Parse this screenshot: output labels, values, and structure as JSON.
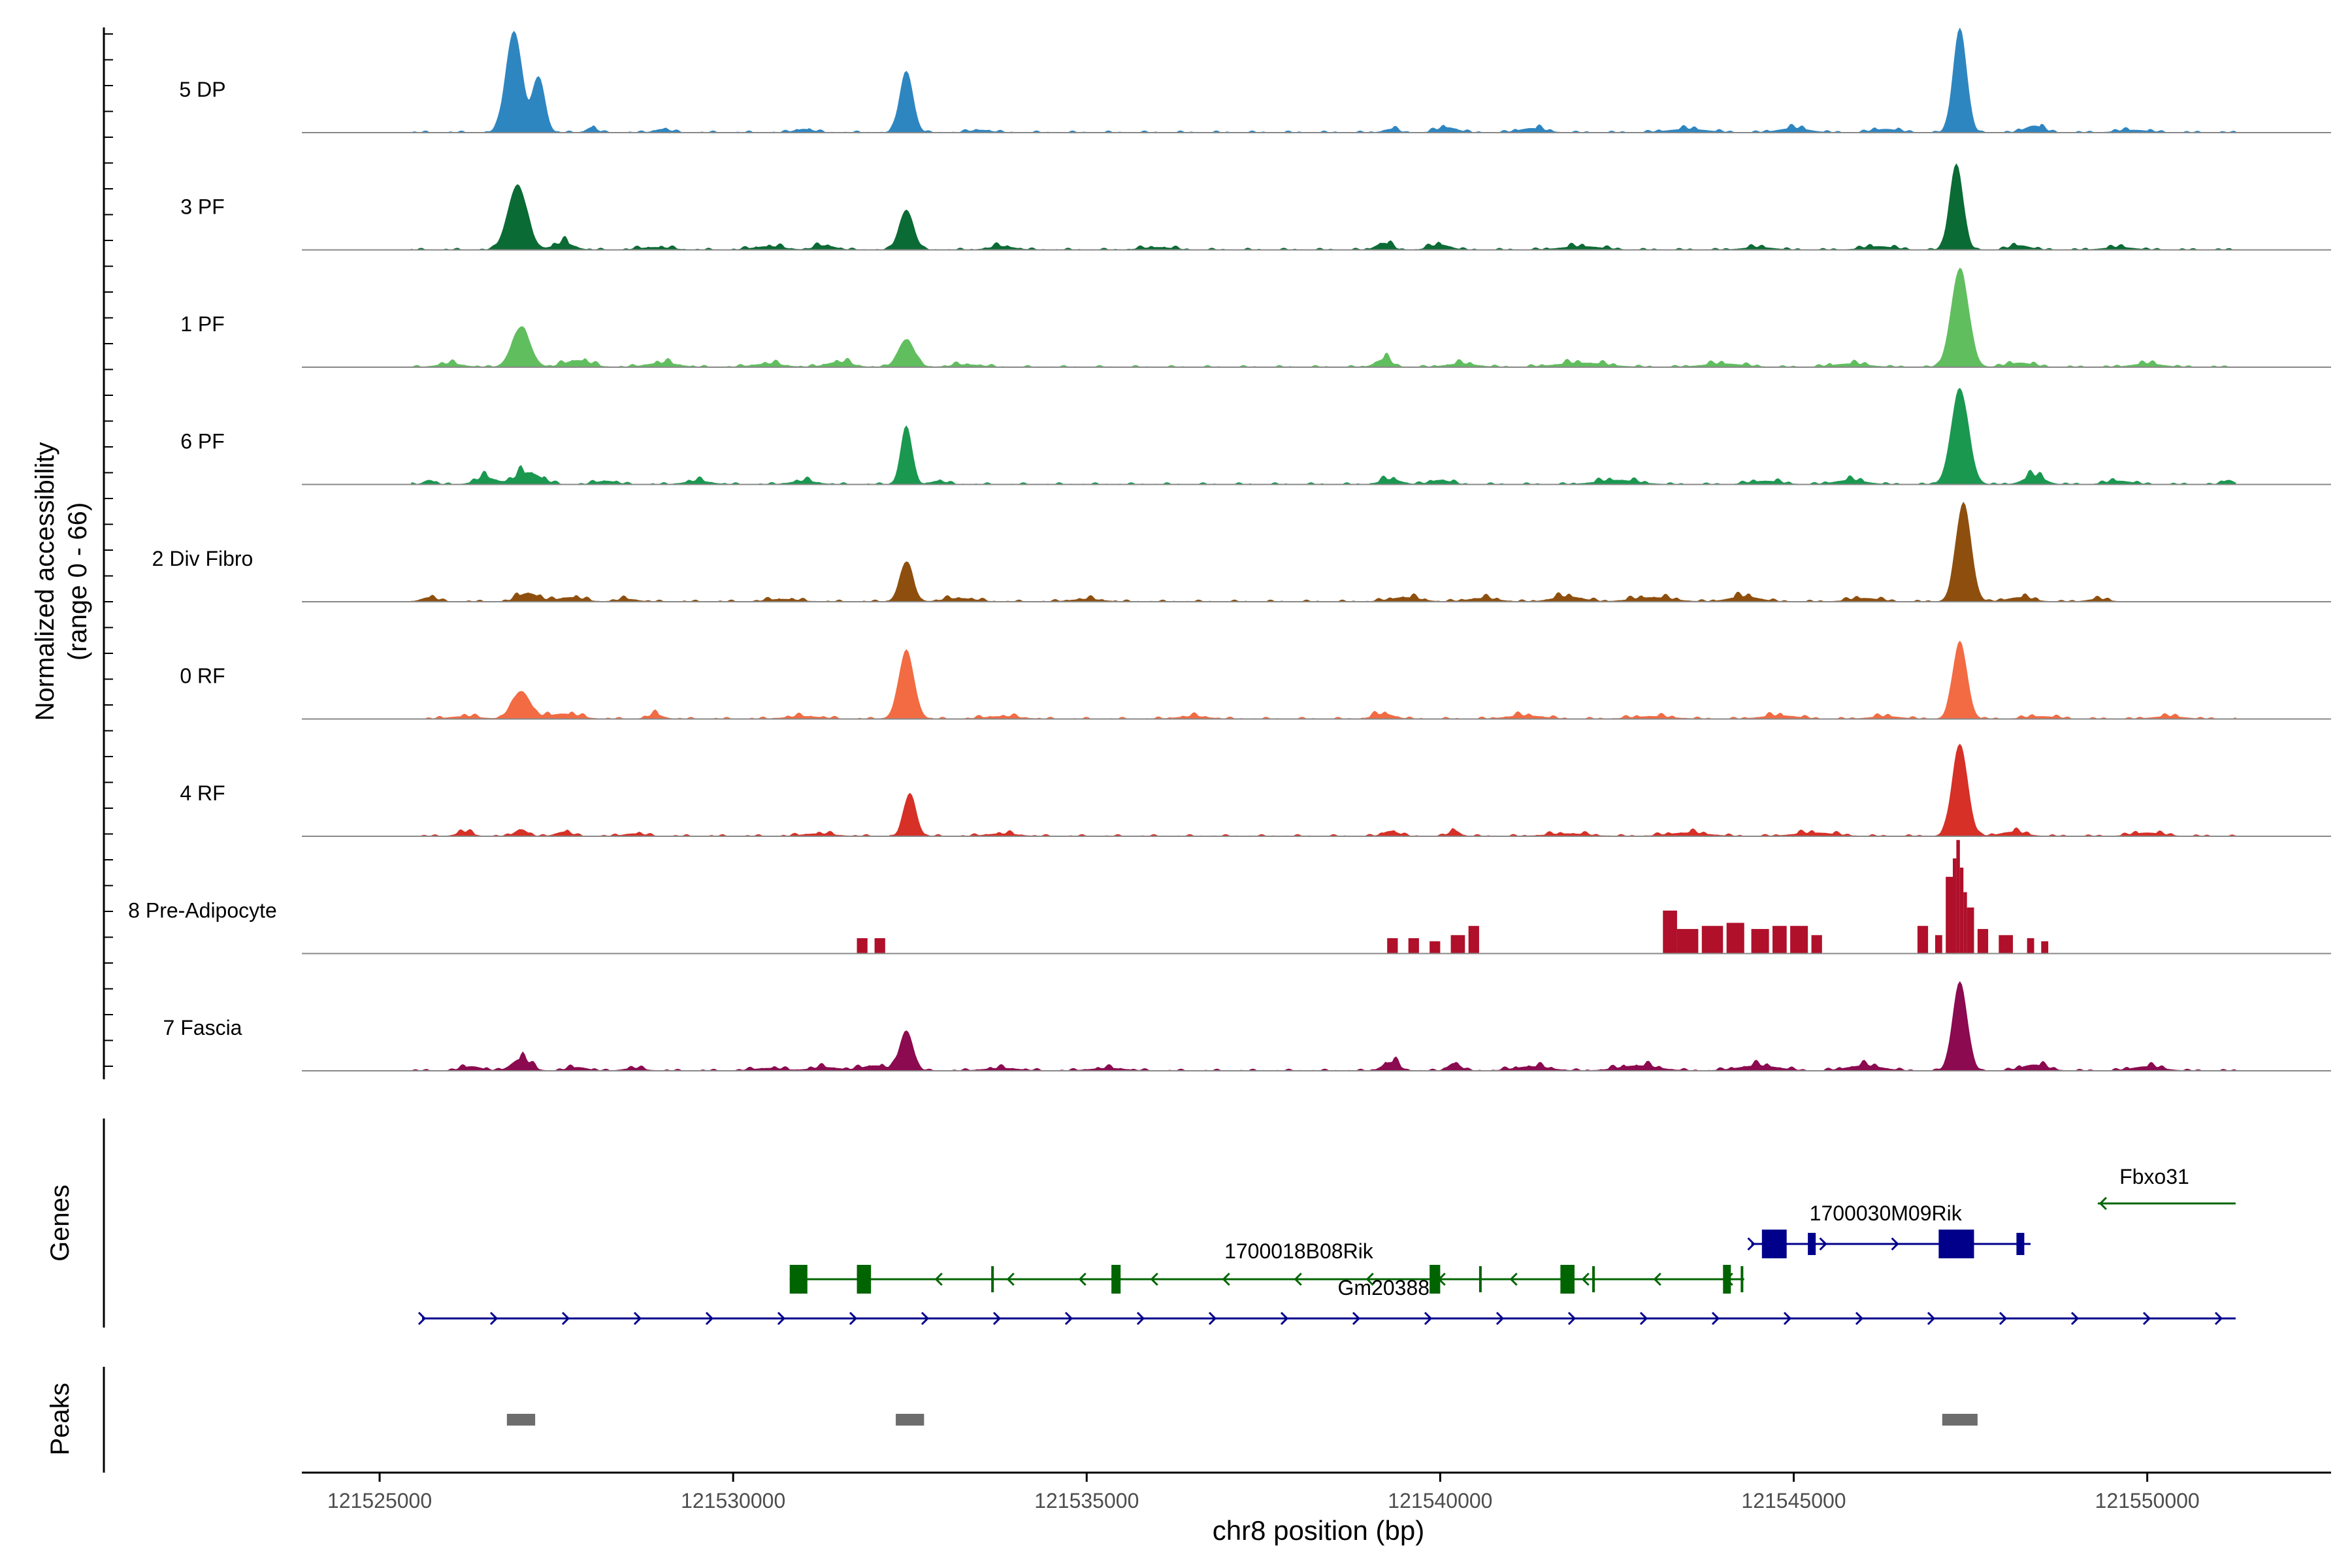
{
  "chart_data": {
    "type": "area",
    "ylabel": "Normalized accessibility",
    "ylabel_range": "(range 0 - 66)",
    "xlabel": "chr8 position (bp)",
    "xlim": [
      121523900,
      121552600
    ],
    "x_ticks": [
      121525000,
      121530000,
      121535000,
      121540000,
      121545000,
      121550000
    ],
    "x_tick_labels": [
      "121525000",
      "121530000",
      "121535000",
      "121540000",
      "121545000",
      "121550000"
    ],
    "ylim": [
      0,
      66
    ],
    "tracks": [
      {
        "name": "5 DP",
        "color": "#2E86C1",
        "extent": [
          121525450,
          121551250
        ],
        "peaks": [
          [
            121526900,
            66,
            160
          ],
          [
            121527250,
            36,
            120
          ],
          [
            121532450,
            40,
            130
          ],
          [
            121547350,
            68,
            130
          ]
        ],
        "bumps": [
          [
            121528000,
            6,
            100
          ],
          [
            121529000,
            4,
            150
          ],
          [
            121531000,
            4,
            180
          ],
          [
            121533500,
            3,
            200
          ],
          [
            121539300,
            4,
            140
          ],
          [
            121540100,
            6,
            200
          ],
          [
            121541300,
            5,
            250
          ],
          [
            121543500,
            4,
            400
          ],
          [
            121545000,
            5,
            300
          ],
          [
            121546300,
            4,
            250
          ],
          [
            121548400,
            8,
            180
          ],
          [
            121549800,
            3,
            300
          ]
        ]
      },
      {
        "name": "3 PF",
        "color": "#0B6B35",
        "extent": [
          121525450,
          121551250
        ],
        "peaks": [
          [
            121526950,
            42,
            190
          ],
          [
            121532450,
            26,
            140
          ],
          [
            121547300,
            56,
            130
          ]
        ],
        "bumps": [
          [
            121527600,
            8,
            200
          ],
          [
            121528900,
            3,
            300
          ],
          [
            121530500,
            4,
            300
          ],
          [
            121531300,
            5,
            200
          ],
          [
            121533800,
            4,
            250
          ],
          [
            121536000,
            3,
            300
          ],
          [
            121539200,
            8,
            150
          ],
          [
            121540000,
            6,
            200
          ],
          [
            121542000,
            4,
            400
          ],
          [
            121544500,
            3,
            300
          ],
          [
            121546200,
            4,
            300
          ],
          [
            121548200,
            5,
            200
          ],
          [
            121549600,
            3,
            300
          ]
        ]
      },
      {
        "name": "1 PF",
        "color": "#61BE5F",
        "extent": [
          121525450,
          121551250
        ],
        "peaks": [
          [
            121527000,
            26,
            180
          ],
          [
            121532450,
            18,
            160
          ],
          [
            121547350,
            64,
            170
          ]
        ],
        "bumps": [
          [
            121527800,
            8,
            250
          ],
          [
            121526000,
            4,
            250
          ],
          [
            121529000,
            5,
            300
          ],
          [
            121530500,
            4,
            300
          ],
          [
            121531500,
            6,
            250
          ],
          [
            121533300,
            3,
            300
          ],
          [
            121539200,
            9,
            160
          ],
          [
            121540300,
            4,
            300
          ],
          [
            121542000,
            5,
            500
          ],
          [
            121544000,
            4,
            400
          ],
          [
            121545800,
            4,
            350
          ],
          [
            121548200,
            5,
            250
          ],
          [
            121550000,
            4,
            300
          ]
        ]
      },
      {
        "name": "6 PF",
        "color": "#1A9850",
        "extent": [
          121525450,
          121551250
        ],
        "peaks": [
          [
            121532450,
            38,
            110
          ],
          [
            121547350,
            62,
            170
          ]
        ],
        "bumps": [
          [
            121527100,
            14,
            250
          ],
          [
            121526500,
            8,
            200
          ],
          [
            121525700,
            5,
            100
          ],
          [
            121528200,
            4,
            200
          ],
          [
            121529500,
            4,
            250
          ],
          [
            121531000,
            4,
            250
          ],
          [
            121532900,
            4,
            150
          ],
          [
            121539300,
            6,
            200
          ],
          [
            121540000,
            5,
            200
          ],
          [
            121542500,
            5,
            400
          ],
          [
            121544600,
            4,
            300
          ],
          [
            121545800,
            5,
            300
          ],
          [
            121548400,
            10,
            200
          ],
          [
            121549600,
            4,
            250
          ],
          [
            121551150,
            5,
            100
          ]
        ]
      },
      {
        "name": "2 Div Fibro",
        "color": "#8E4F0E",
        "extent": [
          121525450,
          121549700
        ],
        "peaks": [
          [
            121532450,
            26,
            130
          ],
          [
            121547400,
            64,
            150
          ]
        ],
        "bumps": [
          [
            121527100,
            10,
            200
          ],
          [
            121527700,
            5,
            250
          ],
          [
            121525700,
            5,
            150
          ],
          [
            121528500,
            3,
            200
          ],
          [
            121530700,
            3,
            300
          ],
          [
            121533200,
            4,
            300
          ],
          [
            121535000,
            3,
            300
          ],
          [
            121539500,
            5,
            300
          ],
          [
            121540600,
            4,
            300
          ],
          [
            121541800,
            6,
            300
          ],
          [
            121543000,
            5,
            400
          ],
          [
            121544300,
            6,
            300
          ],
          [
            121546000,
            4,
            300
          ],
          [
            121548200,
            5,
            250
          ],
          [
            121549300,
            3,
            200
          ]
        ]
      },
      {
        "name": "0 RF",
        "color": "#F26B43",
        "extent": [
          121525450,
          121551250
        ],
        "peaks": [
          [
            121527000,
            18,
            180
          ],
          [
            121532450,
            44,
            150
          ],
          [
            121547350,
            50,
            140
          ]
        ],
        "bumps": [
          [
            121527600,
            6,
            300
          ],
          [
            121526200,
            3,
            300
          ],
          [
            121528900,
            5,
            150
          ],
          [
            121531000,
            3,
            350
          ],
          [
            121533800,
            3,
            350
          ],
          [
            121536500,
            3,
            300
          ],
          [
            121539200,
            6,
            200
          ],
          [
            121541200,
            4,
            350
          ],
          [
            121543000,
            3,
            400
          ],
          [
            121544800,
            4,
            350
          ],
          [
            121546300,
            3,
            300
          ],
          [
            121548500,
            3,
            300
          ],
          [
            121550300,
            3,
            300
          ]
        ]
      },
      {
        "name": "4 RF",
        "color": "#D73027",
        "extent": [
          121525450,
          121551250
        ],
        "peaks": [
          [
            121532500,
            28,
            120
          ],
          [
            121547350,
            60,
            150
          ]
        ],
        "bumps": [
          [
            121527000,
            8,
            120
          ],
          [
            121526200,
            5,
            150
          ],
          [
            121527600,
            5,
            150
          ],
          [
            121528600,
            3,
            200
          ],
          [
            121531200,
            3,
            300
          ],
          [
            121533800,
            3,
            300
          ],
          [
            121539300,
            6,
            150
          ],
          [
            121540200,
            7,
            100
          ],
          [
            121541800,
            3,
            400
          ],
          [
            121543500,
            4,
            400
          ],
          [
            121545300,
            4,
            400
          ],
          [
            121548100,
            5,
            250
          ],
          [
            121550000,
            4,
            300
          ]
        ]
      },
      {
        "name": "8 Pre-Adipocyte",
        "color": "#B0102A",
        "extent": [
          121531600,
          121548000
        ],
        "bars": [
          [
            121531750,
            121531900,
            10
          ],
          [
            121532000,
            121532150,
            10
          ],
          [
            121539250,
            121539400,
            10
          ],
          [
            121539550,
            121539700,
            10
          ],
          [
            121539850,
            121540000,
            8
          ],
          [
            121540150,
            121540350,
            12
          ],
          [
            121540400,
            121540550,
            18
          ],
          [
            121543150,
            121543350,
            28
          ],
          [
            121543350,
            121543650,
            16
          ],
          [
            121543700,
            121544000,
            18
          ],
          [
            121544050,
            121544300,
            20
          ],
          [
            121544400,
            121544650,
            16
          ],
          [
            121544700,
            121544900,
            18
          ],
          [
            121544950,
            121545200,
            18
          ],
          [
            121545250,
            121545400,
            12
          ],
          [
            121546750,
            121546900,
            18
          ],
          [
            121547000,
            121547100,
            12
          ],
          [
            121547150,
            121547250,
            50
          ],
          [
            121547250,
            121547300,
            62
          ],
          [
            121547300,
            121547350,
            74
          ],
          [
            121547350,
            121547400,
            56
          ],
          [
            121547400,
            121547450,
            40
          ],
          [
            121547450,
            121547550,
            30
          ],
          [
            121547600,
            121547750,
            16
          ],
          [
            121547900,
            121548100,
            12
          ],
          [
            121548300,
            121548400,
            10
          ],
          [
            121548500,
            121548600,
            8
          ]
        ]
      },
      {
        "name": "7 Fascia",
        "color": "#8B0A50",
        "extent": [
          121525450,
          121551250
        ],
        "peaks": [
          [
            121532450,
            26,
            130
          ],
          [
            121547350,
            58,
            140
          ]
        ],
        "bumps": [
          [
            121527000,
            14,
            180
          ],
          [
            121526300,
            5,
            200
          ],
          [
            121527800,
            4,
            200
          ],
          [
            121528600,
            3,
            200
          ],
          [
            121530500,
            3,
            300
          ],
          [
            121531300,
            4,
            300
          ],
          [
            121532000,
            6,
            250
          ],
          [
            121533800,
            3,
            350
          ],
          [
            121535300,
            3,
            350
          ],
          [
            121539300,
            10,
            160
          ],
          [
            121540200,
            9,
            120
          ],
          [
            121541300,
            5,
            350
          ],
          [
            121542800,
            6,
            400
          ],
          [
            121544500,
            6,
            400
          ],
          [
            121546000,
            6,
            350
          ],
          [
            121548400,
            7,
            250
          ],
          [
            121550000,
            5,
            300
          ]
        ]
      }
    ],
    "genes_label": "Genes",
    "peaks_label": "Peaks",
    "genes": [
      {
        "name": "Fbxo31",
        "color": "#006400",
        "start": 121549300,
        "end": 121551250,
        "strand": "-",
        "row": 0,
        "exons": []
      },
      {
        "name": "1700030M09Rik",
        "color": "#00008B",
        "start": 121544400,
        "end": 121548350,
        "strand": "+",
        "row": 1,
        "exons": [
          [
            121544550,
            121544900,
            "thick"
          ],
          [
            121545200,
            121545280,
            "thin"
          ],
          [
            121547050,
            121547550,
            "thick"
          ],
          [
            121548150,
            121548250,
            "thin"
          ]
        ]
      },
      {
        "name": "1700018B08Rik",
        "color": "#006400",
        "start": 121530800,
        "end": 121544300,
        "strand": "-",
        "row": 2,
        "exons": [
          [
            121530800,
            121531050,
            "thick"
          ],
          [
            121531750,
            121531950,
            "thick"
          ],
          [
            121533650,
            121533700,
            "line"
          ],
          [
            121535350,
            121535480,
            "thick"
          ],
          [
            121539850,
            121540000,
            "thick"
          ],
          [
            121540550,
            121540600,
            "line"
          ],
          [
            121541700,
            121541900,
            "thick"
          ],
          [
            121542150,
            121542200,
            "line"
          ],
          [
            121544000,
            121544100,
            "thick"
          ],
          [
            121544250,
            121544300,
            "line"
          ]
        ]
      },
      {
        "name": "Gm20388",
        "color": "#00008B",
        "start": 121525600,
        "end": 121551250,
        "strand": "+",
        "row": 3,
        "exons": []
      }
    ],
    "peak_regions": [
      [
        121526800,
        121527200
      ],
      [
        121532300,
        121532700
      ],
      [
        121547100,
        121547600
      ]
    ]
  }
}
